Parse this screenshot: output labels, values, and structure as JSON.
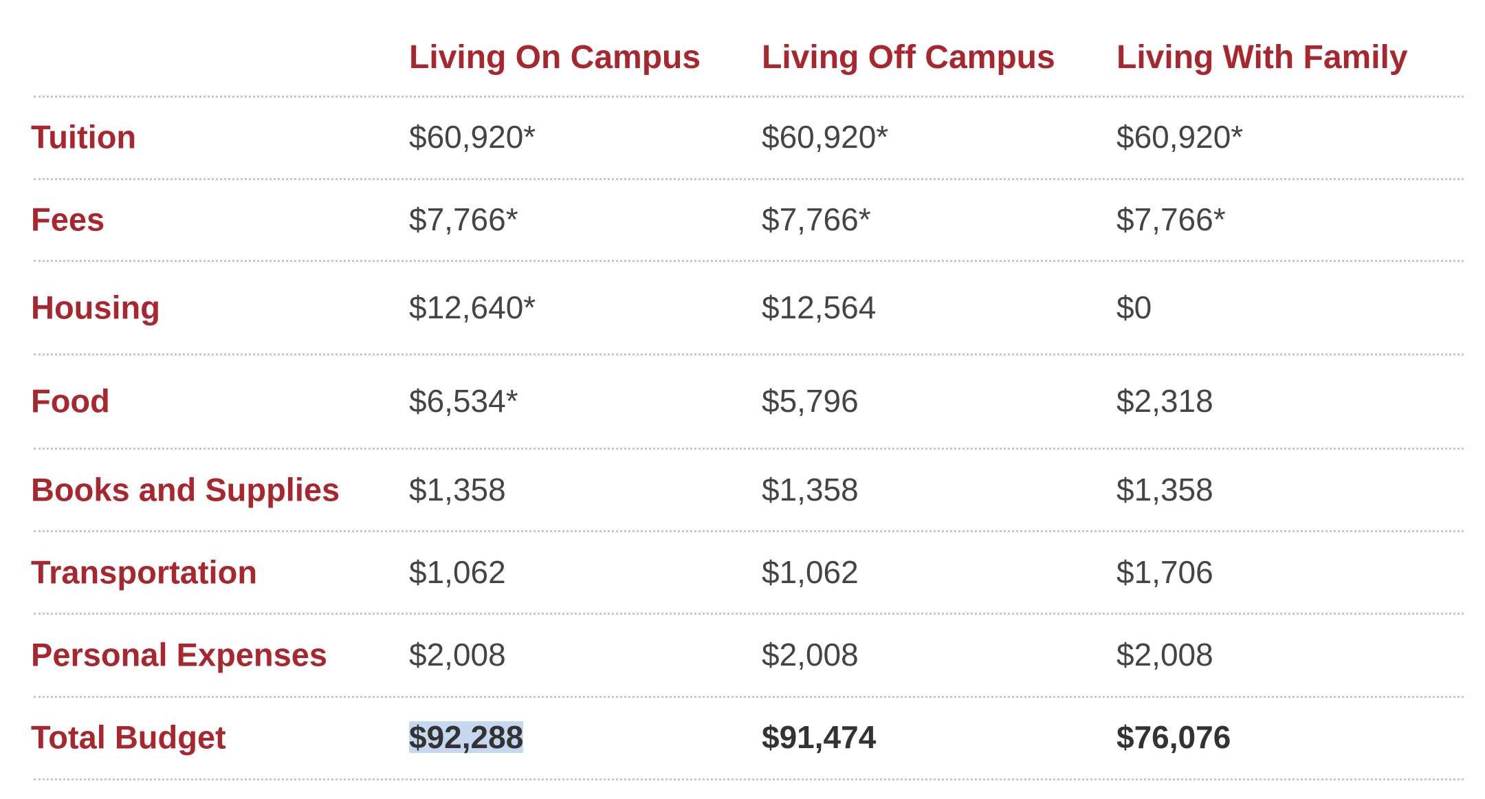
{
  "table": {
    "columns": [
      "Living On Campus",
      "Living Off Campus",
      "Living With Family"
    ],
    "rows": [
      {
        "label": "Tuition",
        "values": [
          "$60,920*",
          "$60,920*",
          "$60,920*"
        ]
      },
      {
        "label": "Fees",
        "values": [
          "$7,766*",
          "$7,766*",
          "$7,766*"
        ]
      },
      {
        "label": "Housing",
        "values": [
          "$12,640*",
          "$12,564",
          "$0"
        ]
      },
      {
        "label": "Food",
        "values": [
          "$6,534*",
          "$5,796",
          "$2,318"
        ]
      },
      {
        "label": "Books and Supplies",
        "values": [
          "$1,358",
          "$1,358",
          "$1,358"
        ]
      },
      {
        "label": "Transportation",
        "values": [
          "$1,062",
          "$1,062",
          "$1,706"
        ]
      },
      {
        "label": "Personal Expenses",
        "values": [
          "$2,008",
          "$2,008",
          "$2,008"
        ]
      },
      {
        "label": "Total Budget",
        "values": [
          "$92,288",
          "$91,474",
          "$76,076"
        ]
      }
    ]
  }
}
